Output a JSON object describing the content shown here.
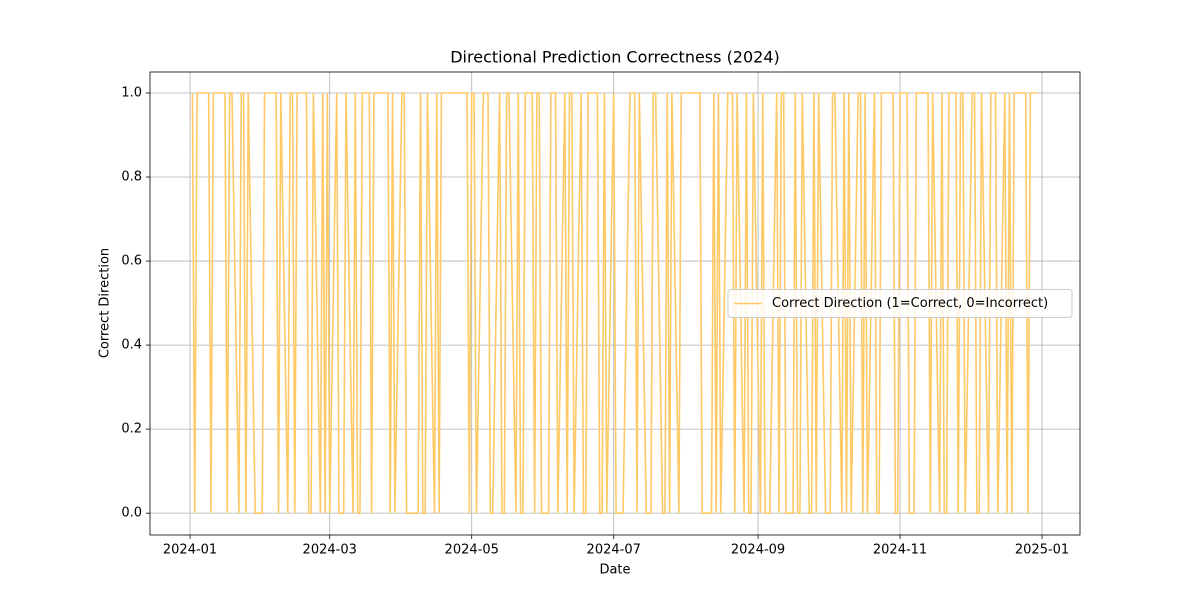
{
  "chart_data": {
    "type": "line",
    "title": "Directional Prediction Correctness (2024)",
    "xlabel": "Date",
    "ylabel": "Correct Direction",
    "x": [
      1,
      2,
      3,
      4,
      7,
      8,
      9,
      10,
      11,
      14,
      15,
      16,
      17,
      18,
      21,
      22,
      23,
      24,
      25,
      28,
      29,
      30,
      31,
      32,
      35,
      36,
      37,
      38,
      39,
      42,
      43,
      44,
      45,
      46,
      49,
      50,
      51,
      52,
      53,
      56,
      57,
      58,
      59,
      60,
      63,
      64,
      65,
      66,
      67,
      70,
      71,
      72,
      73,
      74,
      77,
      78,
      79,
      80,
      81,
      84,
      85,
      86,
      87,
      88,
      91,
      92,
      93,
      94,
      95,
      98,
      99,
      100,
      101,
      102,
      105,
      106,
      107,
      108,
      109,
      112,
      113,
      114,
      115,
      116,
      119,
      120,
      121,
      122,
      123,
      126,
      127,
      128,
      129,
      130,
      133,
      134,
      135,
      136,
      137,
      140,
      141,
      142,
      143,
      144,
      147,
      148,
      149,
      150,
      151,
      154,
      155,
      156,
      157,
      158,
      161,
      162,
      163,
      164,
      165,
      168,
      169,
      170,
      171,
      172,
      175,
      176,
      177,
      178,
      179,
      182,
      183,
      184,
      185,
      186,
      189,
      190,
      191,
      192,
      193,
      196,
      197,
      198,
      199,
      200,
      203,
      204,
      205,
      206,
      207,
      210,
      211,
      212,
      213,
      214,
      217,
      218,
      219,
      220,
      221,
      224,
      225,
      226,
      227,
      228,
      231,
      232,
      233,
      234,
      235,
      238,
      239,
      240,
      241,
      242,
      245,
      246,
      247,
      248,
      249,
      252,
      253,
      254,
      255,
      256,
      259,
      260,
      261,
      262,
      263,
      266,
      267,
      268,
      269,
      270,
      273,
      274,
      275,
      276,
      277,
      280,
      281,
      282,
      283,
      284,
      287,
      288,
      289,
      290,
      291,
      294,
      295,
      296,
      297,
      298,
      301,
      302,
      303,
      304,
      305,
      308,
      309,
      310,
      311,
      312,
      315,
      316,
      317,
      318,
      319,
      322,
      323,
      324,
      325,
      326,
      329,
      330,
      331,
      332,
      333,
      336,
      337,
      338,
      339,
      340,
      343,
      344,
      345,
      346,
      347,
      350,
      351,
      352,
      353,
      354,
      357,
      358,
      359,
      360,
      361,
      364
    ],
    "series": [
      {
        "name": "Correct Direction (1=Correct, 0=Incorrect)",
        "color": "#ffc966",
        "values": [
          1,
          0,
          1,
          1,
          1,
          1,
          0,
          1,
          1,
          1,
          1,
          0,
          1,
          1,
          0,
          1,
          1,
          0,
          1,
          0,
          0,
          0,
          0,
          1,
          1,
          1,
          1,
          0,
          1,
          0,
          1,
          1,
          0,
          1,
          1,
          1,
          0,
          0,
          1,
          0,
          1,
          0,
          1,
          0,
          1,
          0,
          0,
          0,
          1,
          0,
          1,
          0,
          0,
          1,
          1,
          0,
          1,
          1,
          1,
          1,
          1,
          0,
          1,
          0,
          1,
          1,
          0,
          0,
          0,
          0,
          1,
          0,
          0,
          1,
          0,
          1,
          0,
          1,
          1,
          1,
          1,
          1,
          1,
          1,
          1,
          0,
          1,
          1,
          0,
          1,
          1,
          1,
          0,
          0,
          1,
          0,
          0,
          1,
          1,
          0,
          1,
          0,
          0,
          1,
          1,
          0,
          1,
          1,
          0,
          0,
          1,
          1,
          1,
          0,
          1,
          0,
          1,
          1,
          0,
          1,
          0,
          0,
          1,
          1,
          1,
          0,
          0,
          1,
          0,
          1,
          0,
          0,
          0,
          0,
          1,
          1,
          1,
          0,
          1,
          0,
          0,
          0,
          1,
          1,
          0,
          0,
          1,
          0,
          1,
          0,
          1,
          1,
          1,
          1,
          1,
          1,
          1,
          0,
          0,
          0,
          1,
          0,
          1,
          0,
          1,
          1,
          1,
          0,
          1,
          0,
          1,
          0,
          0,
          1,
          0,
          1,
          0,
          0,
          0,
          1,
          0,
          1,
          1,
          0,
          0,
          1,
          0,
          0,
          1,
          0,
          0,
          1,
          0,
          1,
          0,
          0,
          0,
          1,
          1,
          0,
          1,
          0,
          1,
          0,
          1,
          1,
          0,
          1,
          0,
          1,
          0,
          0,
          1,
          1,
          1,
          1,
          0,
          0,
          1,
          1,
          0,
          0,
          0,
          1,
          1,
          1,
          1,
          0,
          1,
          0,
          1,
          0,
          0,
          1,
          1,
          0,
          1,
          1,
          0,
          1,
          1,
          0,
          0,
          1,
          0,
          1,
          1,
          1,
          0,
          1,
          0,
          1,
          0,
          1,
          1,
          1,
          1,
          0,
          1,
          1
        ]
      }
    ],
    "xlim": [
      -17.2,
      382.3
    ],
    "xticks": [
      {
        "value": 0,
        "label": "2024-01"
      },
      {
        "value": 60,
        "label": "2024-03"
      },
      {
        "value": 121,
        "label": "2024-05"
      },
      {
        "value": 182,
        "label": "2024-07"
      },
      {
        "value": 244,
        "label": "2024-09"
      },
      {
        "value": 305,
        "label": "2024-11"
      },
      {
        "value": 366,
        "label": "2025-01"
      }
    ],
    "ylim": [
      -0.052,
      1.05
    ],
    "yticks": [
      {
        "value": 0,
        "label": "0.0"
      },
      {
        "value": 0.2,
        "label": "0.2"
      },
      {
        "value": 0.4,
        "label": "0.4"
      },
      {
        "value": 0.6,
        "label": "0.6"
      },
      {
        "value": 0.8,
        "label": "0.8"
      },
      {
        "value": 1,
        "label": "1.0"
      }
    ],
    "grid": true,
    "legend": "center right"
  }
}
